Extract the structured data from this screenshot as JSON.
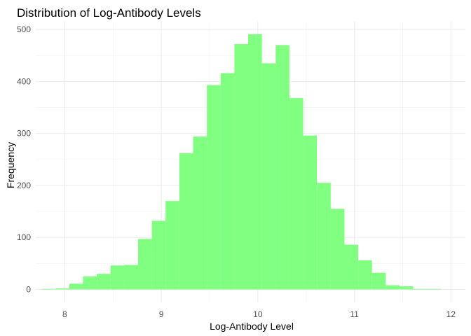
{
  "chart_data": {
    "type": "bar",
    "subtype": "histogram",
    "title": "Distribution of Log-Antibody Levels",
    "xlabel": "Log-Antibody Level",
    "ylabel": "Frequency",
    "xlim": [
      7.7,
      12.15
    ],
    "ylim": [
      -25,
      515
    ],
    "x_ticks": [
      8,
      9,
      10,
      11,
      12
    ],
    "y_ticks": [
      0,
      100,
      200,
      300,
      400,
      500
    ],
    "grid": true,
    "legend": "none",
    "bar_color": "#80ff80",
    "bin_width": 0.1425,
    "bin_start": 7.7625,
    "values": [
      1,
      2,
      11,
      25,
      30,
      46,
      47,
      97,
      132,
      170,
      262,
      294,
      393,
      416,
      472,
      491,
      435,
      470,
      368,
      296,
      205,
      155,
      86,
      56,
      32,
      8,
      6,
      1,
      1
    ]
  }
}
